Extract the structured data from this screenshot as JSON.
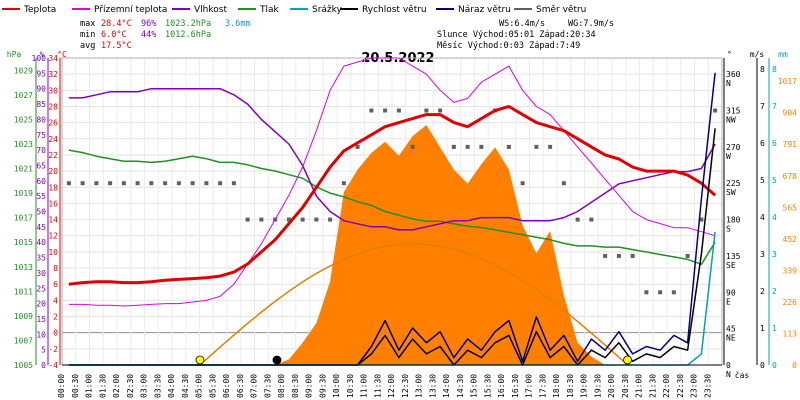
{
  "legend": [
    {
      "label": "Teplota",
      "color": "#e00000"
    },
    {
      "label": "Přízemní teplota",
      "color": "#e000e0"
    },
    {
      "label": "Vlhkost",
      "color": "#8000c0"
    },
    {
      "label": "Tlak",
      "color": "#209020"
    },
    {
      "label": "Srážky",
      "color": "#00a0c0"
    },
    {
      "label": "Rychlost větru",
      "color": "#000000"
    },
    {
      "label": "Náraz větru",
      "color": "#000080"
    },
    {
      "label": "Směr větru",
      "color": "#606060"
    }
  ],
  "stats": {
    "max_label": "max",
    "max_temp": "28.4°C",
    "max_hum": "96%",
    "max_press": "1023.2hPa",
    "max_rain": "3.6mm",
    "min_label": "min",
    "min_temp": "6.0°C",
    "min_hum": "44%",
    "min_press": "1012.6hPa",
    "avg_label": "avg",
    "avg_temp": "17.5°C",
    "ws": "WS:6.4m/s",
    "wg": "WG:7.9m/s",
    "sun": "Slunce Východ:05:01  Západ:20:34",
    "moon": "Měsíc  Východ:0:03  Západ:7:49"
  },
  "colors": {
    "temperature": "#e00000",
    "ground_temp": "#e000e0",
    "humidity": "#8000c0",
    "pressure": "#209020",
    "rain": "#00a0c0",
    "wind_speed": "#000000",
    "wind_gust": "#000080",
    "wind_dir": "#606060",
    "solar": "#ff8000",
    "sun_path": "#e08000"
  },
  "chart_data": {
    "type": "line",
    "title": "20.5.2022",
    "xlabel": "čas",
    "x": [
      "00:00",
      "00:30",
      "01:00",
      "01:30",
      "02:00",
      "02:30",
      "03:00",
      "03:30",
      "04:00",
      "04:30",
      "05:00",
      "05:30",
      "06:00",
      "06:30",
      "07:00",
      "07:30",
      "08:00",
      "08:30",
      "09:00",
      "09:30",
      "10:00",
      "10:30",
      "11:00",
      "11:30",
      "12:00",
      "12:30",
      "13:00",
      "13:30",
      "14:00",
      "14:30",
      "15:00",
      "15:30",
      "16:00",
      "16:30",
      "17:00",
      "17:30",
      "18:00",
      "18:30",
      "19:00",
      "19:30",
      "20:00",
      "20:30",
      "21:00",
      "21:30",
      "22:00",
      "22:30",
      "23:00",
      "23:30"
    ],
    "axes": {
      "hpa": {
        "label": "hPa",
        "ticks": [
          "1005",
          "1007",
          "1009",
          "1011",
          "1013",
          "1015",
          "1017",
          "1019",
          "1021",
          "1023",
          "1025",
          "1027",
          "1029"
        ],
        "color": "#209020"
      },
      "percent": {
        "label": "%",
        "ticks": [
          "0",
          "5",
          "10",
          "15",
          "20",
          "25",
          "30",
          "35",
          "40",
          "45",
          "50",
          "55",
          "60",
          "65",
          "70",
          "75",
          "80",
          "85",
          "90",
          "95",
          "100"
        ],
        "color": "#8000c0"
      },
      "celsius": {
        "label": "°C",
        "ticks": [
          "-4",
          "-2",
          "0",
          "2",
          "4",
          "6",
          "8",
          "10",
          "12",
          "14",
          "16",
          "18",
          "20",
          "22",
          "24",
          "26",
          "28",
          "30",
          "32",
          "34"
        ],
        "color": "#e00000",
        "ylim": [
          -4,
          34
        ]
      },
      "degrees": {
        "label": "°",
        "ticks": [
          "0",
          "45",
          "90",
          "135",
          "180",
          "225",
          "270",
          "315",
          "360"
        ]
      },
      "directions": [
        "N",
        "NE",
        "E",
        "SE",
        "S",
        "SW",
        "W",
        "NW",
        "N"
      ],
      "ms": {
        "label": "m/s",
        "ticks": [
          "0",
          "1",
          "2",
          "3",
          "4",
          "5",
          "6",
          "7",
          "8"
        ],
        "color": "#000000"
      },
      "mm": {
        "label": "mm",
        "ticks": [
          "0",
          "1",
          "2",
          "3",
          "4",
          "5",
          "6",
          "7",
          "8"
        ],
        "color": "#00a0c0"
      },
      "wm2": {
        "ticks": [
          "0",
          "113",
          "226",
          "339",
          "452",
          "565",
          "678",
          "791",
          "904",
          "1017"
        ],
        "color": "#ff8000"
      }
    },
    "grid": true,
    "series": [
      {
        "name": "Teplota",
        "unit": "°C",
        "values": [
          6.0,
          6.2,
          6.3,
          6.3,
          6.2,
          6.2,
          6.3,
          6.5,
          6.6,
          6.7,
          6.8,
          7.0,
          7.5,
          8.5,
          10.0,
          11.5,
          13.5,
          15.5,
          18.0,
          20.5,
          22.5,
          23.5,
          24.5,
          25.5,
          26.0,
          26.5,
          27.0,
          27.0,
          26.0,
          25.5,
          26.5,
          27.5,
          28.0,
          27.0,
          26.0,
          25.5,
          25.0,
          24.0,
          23.0,
          22.0,
          21.5,
          20.5,
          20.0,
          20.0,
          20.0,
          19.5,
          18.5,
          17.0
        ]
      },
      {
        "name": "Přízemní teplota",
        "unit": "°C",
        "values": [
          3.5,
          3.5,
          3.4,
          3.4,
          3.3,
          3.4,
          3.5,
          3.6,
          3.6,
          3.8,
          4.0,
          4.5,
          6.0,
          8.5,
          11.0,
          14.0,
          17.0,
          20.5,
          25.0,
          30.0,
          33.0,
          33.5,
          34.0,
          34.0,
          34.0,
          33.0,
          32.0,
          30.0,
          28.5,
          29.0,
          31.0,
          32.0,
          33.0,
          30.0,
          28.0,
          27.0,
          25.0,
          23.0,
          21.0,
          19.0,
          17.0,
          15.0,
          14.0,
          13.5,
          13.0,
          13.0,
          12.5,
          12.0
        ]
      },
      {
        "name": "Vlhkost",
        "unit": "%",
        "values": [
          87,
          87,
          88,
          89,
          89,
          89,
          90,
          90,
          90,
          90,
          90,
          90,
          88,
          85,
          80,
          76,
          72,
          65,
          55,
          50,
          47,
          46,
          45,
          45,
          44,
          44,
          45,
          46,
          47,
          47,
          48,
          48,
          48,
          47,
          47,
          47,
          48,
          50,
          53,
          56,
          59,
          60,
          61,
          62,
          63,
          63,
          64,
          72
        ]
      },
      {
        "name": "Tlak",
        "unit": "hPa",
        "values": [
          1022.5,
          1022.3,
          1022.0,
          1021.8,
          1021.6,
          1021.6,
          1021.5,
          1021.6,
          1021.8,
          1022.0,
          1021.8,
          1021.5,
          1021.5,
          1021.3,
          1021.0,
          1020.8,
          1020.5,
          1020.2,
          1019.5,
          1019.0,
          1018.7,
          1018.3,
          1018.0,
          1017.5,
          1017.2,
          1016.9,
          1016.7,
          1016.7,
          1016.5,
          1016.3,
          1016.2,
          1016.0,
          1015.8,
          1015.6,
          1015.4,
          1015.2,
          1014.9,
          1014.7,
          1014.7,
          1014.6,
          1014.6,
          1014.4,
          1014.2,
          1014.0,
          1013.8,
          1013.6,
          1013.2,
          1015.0
        ]
      },
      {
        "name": "Srážky",
        "unit": "mm",
        "values": [
          0,
          0,
          0,
          0,
          0,
          0,
          0,
          0,
          0,
          0,
          0,
          0,
          0,
          0,
          0,
          0,
          0,
          0,
          0,
          0,
          0,
          0,
          0,
          0,
          0,
          0,
          0,
          0,
          0,
          0,
          0,
          0,
          0,
          0,
          0,
          0,
          0,
          0,
          0,
          0,
          0,
          0,
          0,
          0,
          0,
          0,
          0.3,
          3.6
        ]
      },
      {
        "name": "Rychlost větru",
        "unit": "m/s",
        "values": [
          0,
          0,
          0,
          0,
          0,
          0,
          0,
          0,
          0,
          0,
          0,
          0,
          0,
          0,
          0,
          0,
          0,
          0,
          0,
          0,
          0,
          0,
          0.3,
          0.8,
          0.2,
          0.7,
          0.3,
          0.5,
          0,
          0.4,
          0.2,
          0.6,
          0.8,
          0,
          0.9,
          0.2,
          0.5,
          0,
          0.4,
          0.2,
          0.6,
          0.1,
          0.3,
          0.2,
          0.5,
          0.4,
          3.0,
          6.4
        ]
      },
      {
        "name": "Náraz větru",
        "unit": "m/s",
        "values": [
          0,
          0,
          0,
          0,
          0,
          0,
          0,
          0,
          0,
          0,
          0,
          0,
          0,
          0,
          0,
          0,
          0,
          0,
          0,
          0,
          0,
          0,
          0.5,
          1.2,
          0.4,
          1.0,
          0.6,
          0.9,
          0.2,
          0.7,
          0.4,
          0.9,
          1.2,
          0.1,
          1.3,
          0.4,
          0.8,
          0.1,
          0.7,
          0.4,
          0.9,
          0.3,
          0.5,
          0.4,
          0.8,
          0.6,
          4.5,
          7.9
        ]
      },
      {
        "name": "Směr větru",
        "unit": "°",
        "values": [
          225,
          225,
          225,
          225,
          225,
          225,
          225,
          225,
          225,
          225,
          225,
          225,
          225,
          180,
          180,
          180,
          180,
          180,
          180,
          180,
          225,
          270,
          315,
          315,
          315,
          270,
          315,
          315,
          270,
          270,
          270,
          315,
          270,
          225,
          270,
          270,
          225,
          180,
          180,
          135,
          135,
          135,
          90,
          90,
          90,
          135,
          180,
          315
        ]
      },
      {
        "name": "Solar",
        "unit": "W/m²",
        "values": [
          0,
          0,
          0,
          0,
          0,
          0,
          0,
          0,
          0,
          0,
          0,
          0,
          0,
          0,
          0,
          0,
          20,
          80,
          150,
          300,
          620,
          700,
          760,
          800,
          750,
          820,
          860,
          780,
          700,
          650,
          720,
          780,
          700,
          500,
          400,
          480,
          250,
          80,
          30,
          0,
          0,
          0,
          0,
          0,
          0,
          0,
          0,
          0
        ]
      }
    ],
    "markers": [
      {
        "label": "sunrise",
        "time": "05:01",
        "color": "#ffff00"
      },
      {
        "label": "moonset",
        "time": "07:49",
        "color": "#000000"
      },
      {
        "label": "sunset",
        "time": "20:34",
        "color": "#ffff00"
      }
    ]
  }
}
